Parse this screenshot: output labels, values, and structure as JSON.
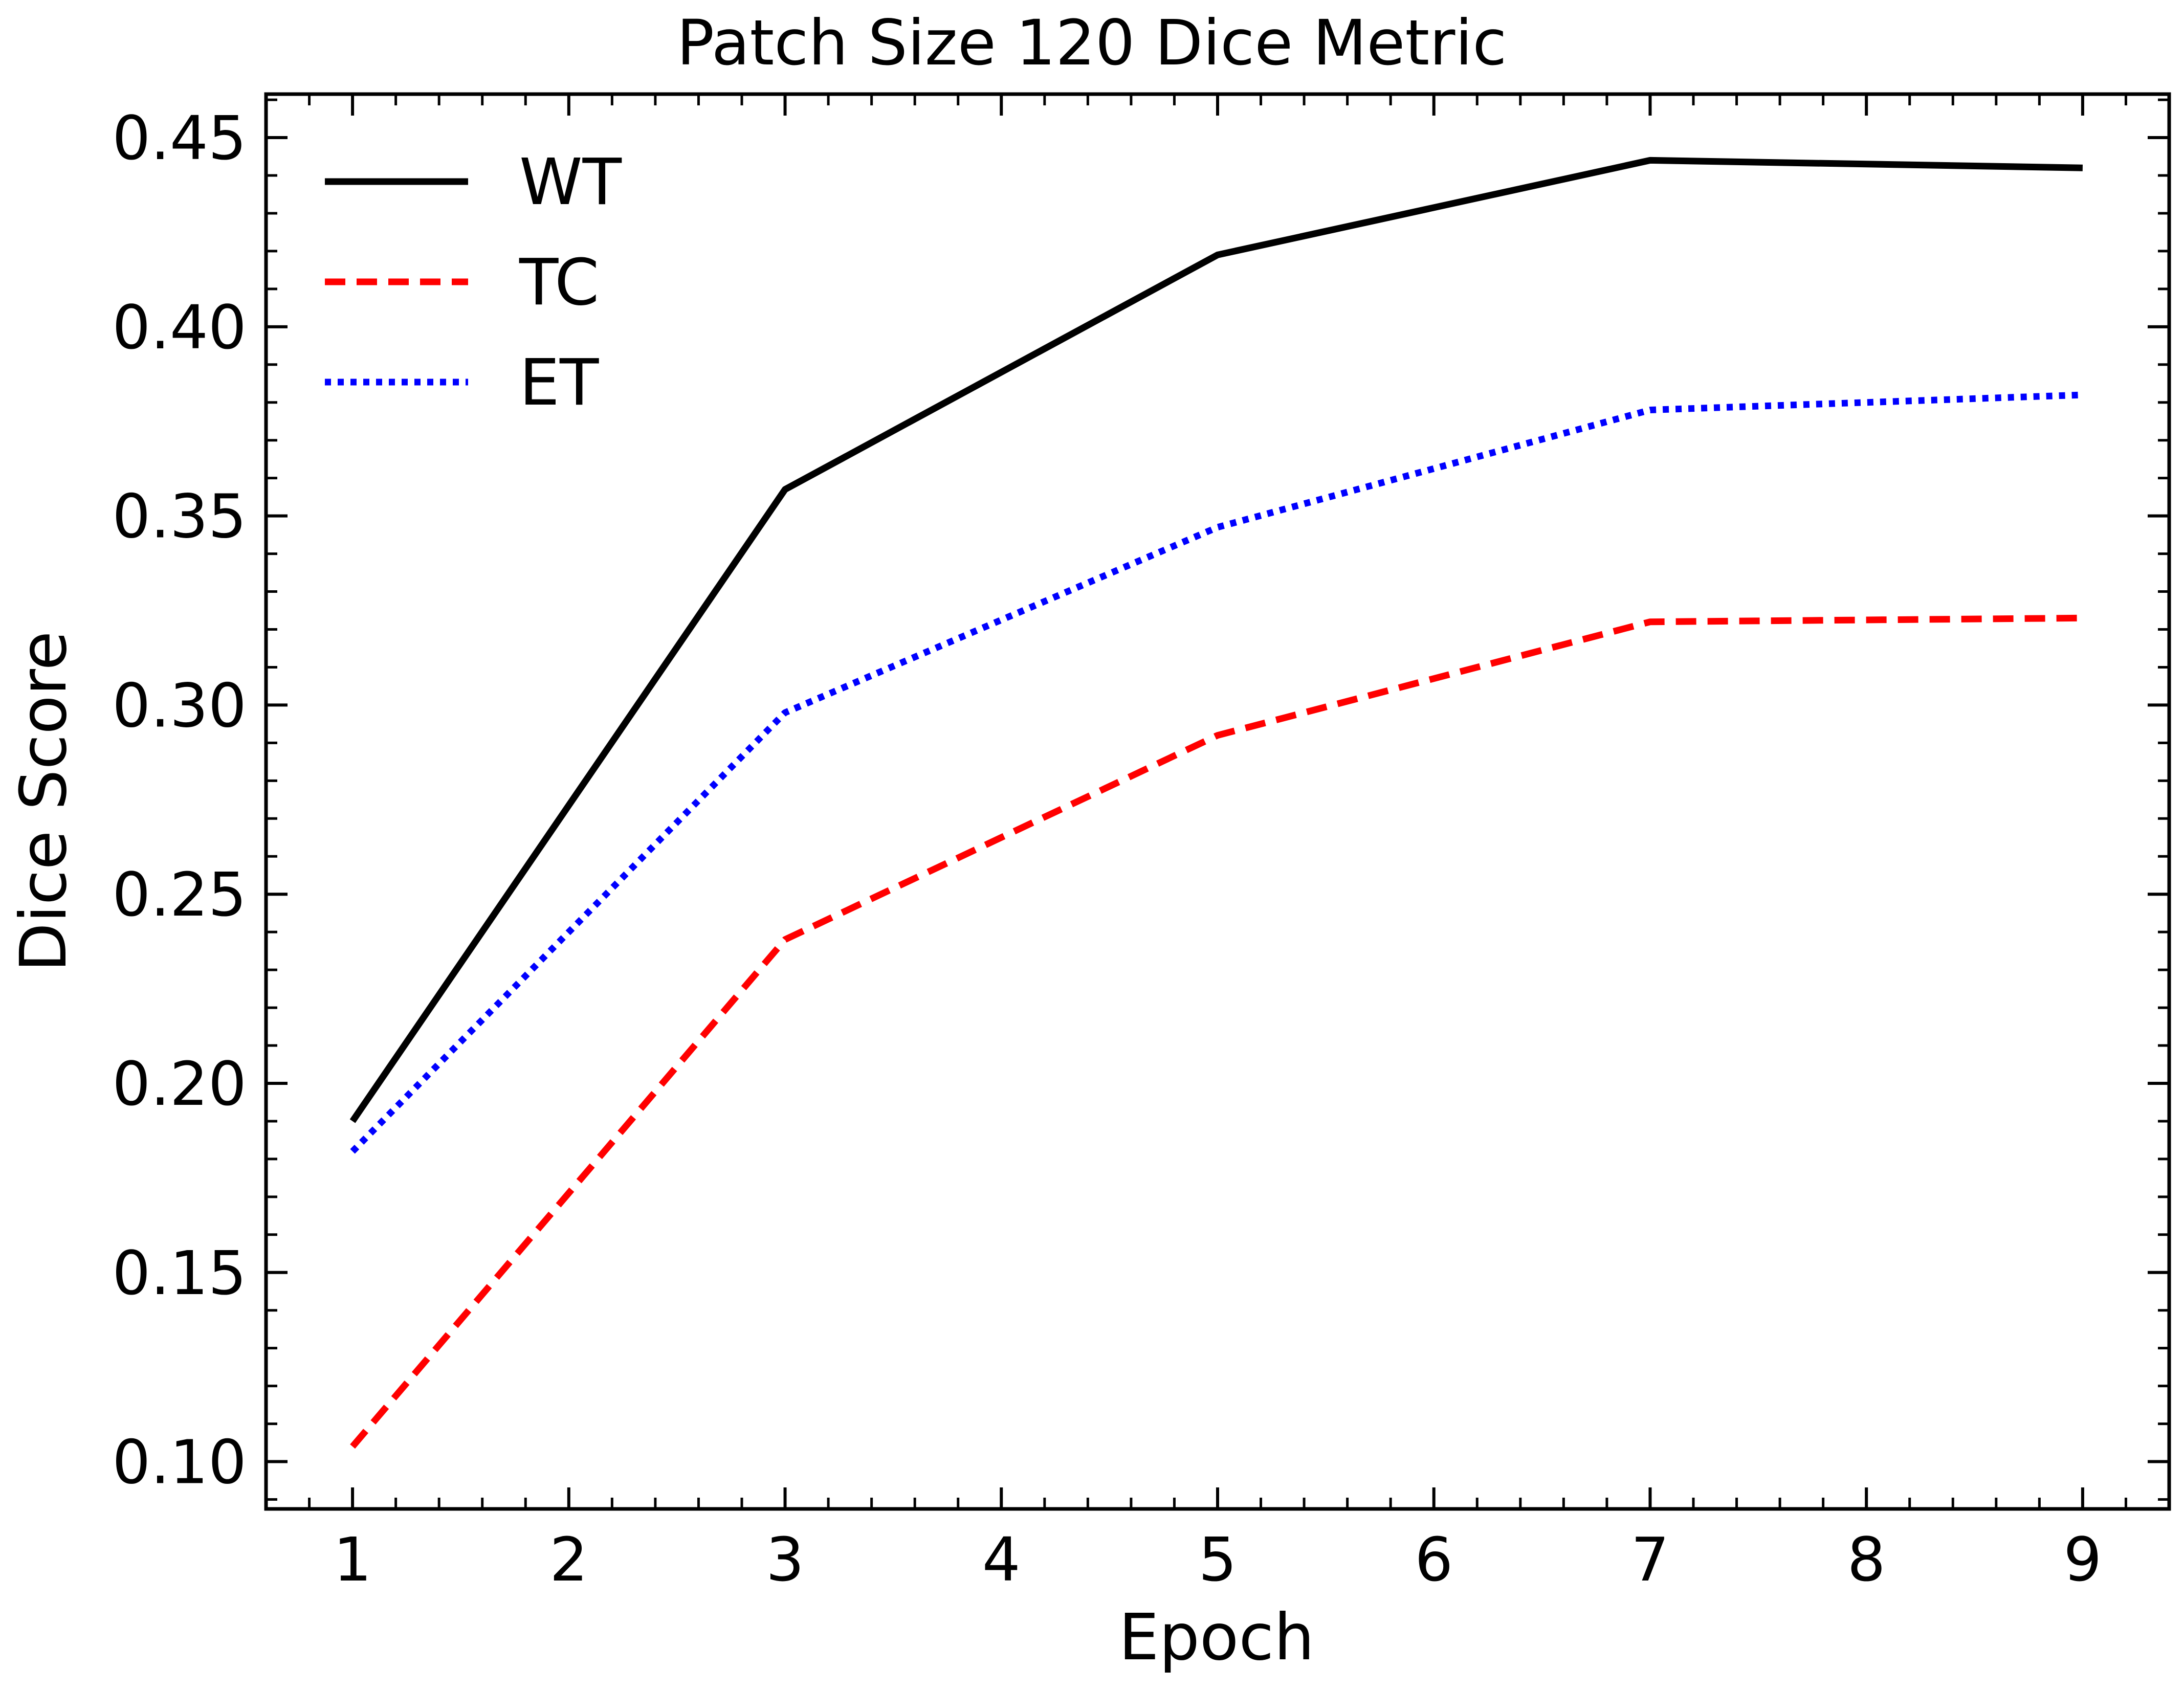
{
  "colors": {
    "background": "#ffffff",
    "axes": "#000000",
    "wt": "#000000",
    "tc": "#ff0000",
    "et": "#0000ff"
  },
  "chart_data": {
    "type": "line",
    "title": "Patch Size 120 Dice Metric",
    "xlabel": "Epoch",
    "ylabel": "Dice Score",
    "x": [
      1,
      3,
      5,
      7,
      9
    ],
    "xlim": [
      0.6,
      9.4
    ],
    "ylim": [
      0.0875,
      0.4615
    ],
    "xticks": [
      1,
      2,
      3,
      4,
      5,
      6,
      7,
      8,
      9
    ],
    "xtick_labels": [
      "1",
      "2",
      "3",
      "4",
      "5",
      "6",
      "7",
      "8",
      "9"
    ],
    "yticks": [
      0.1,
      0.15,
      0.2,
      0.25,
      0.3,
      0.35,
      0.4,
      0.45
    ],
    "ytick_labels": [
      "0.10",
      "0.15",
      "0.20",
      "0.25",
      "0.30",
      "0.35",
      "0.40",
      "0.45"
    ],
    "grid": false,
    "legend_position": "top-left",
    "series": [
      {
        "name": "WT",
        "values": [
          0.19,
          0.357,
          0.419,
          0.444,
          0.442
        ],
        "color": "#000000",
        "style": "solid"
      },
      {
        "name": "TC",
        "values": [
          0.104,
          0.238,
          0.292,
          0.322,
          0.323
        ],
        "color": "#ff0000",
        "style": "dashed"
      },
      {
        "name": "ET",
        "values": [
          0.182,
          0.298,
          0.347,
          0.378,
          0.382
        ],
        "color": "#0000ff",
        "style": "dotted"
      }
    ]
  }
}
